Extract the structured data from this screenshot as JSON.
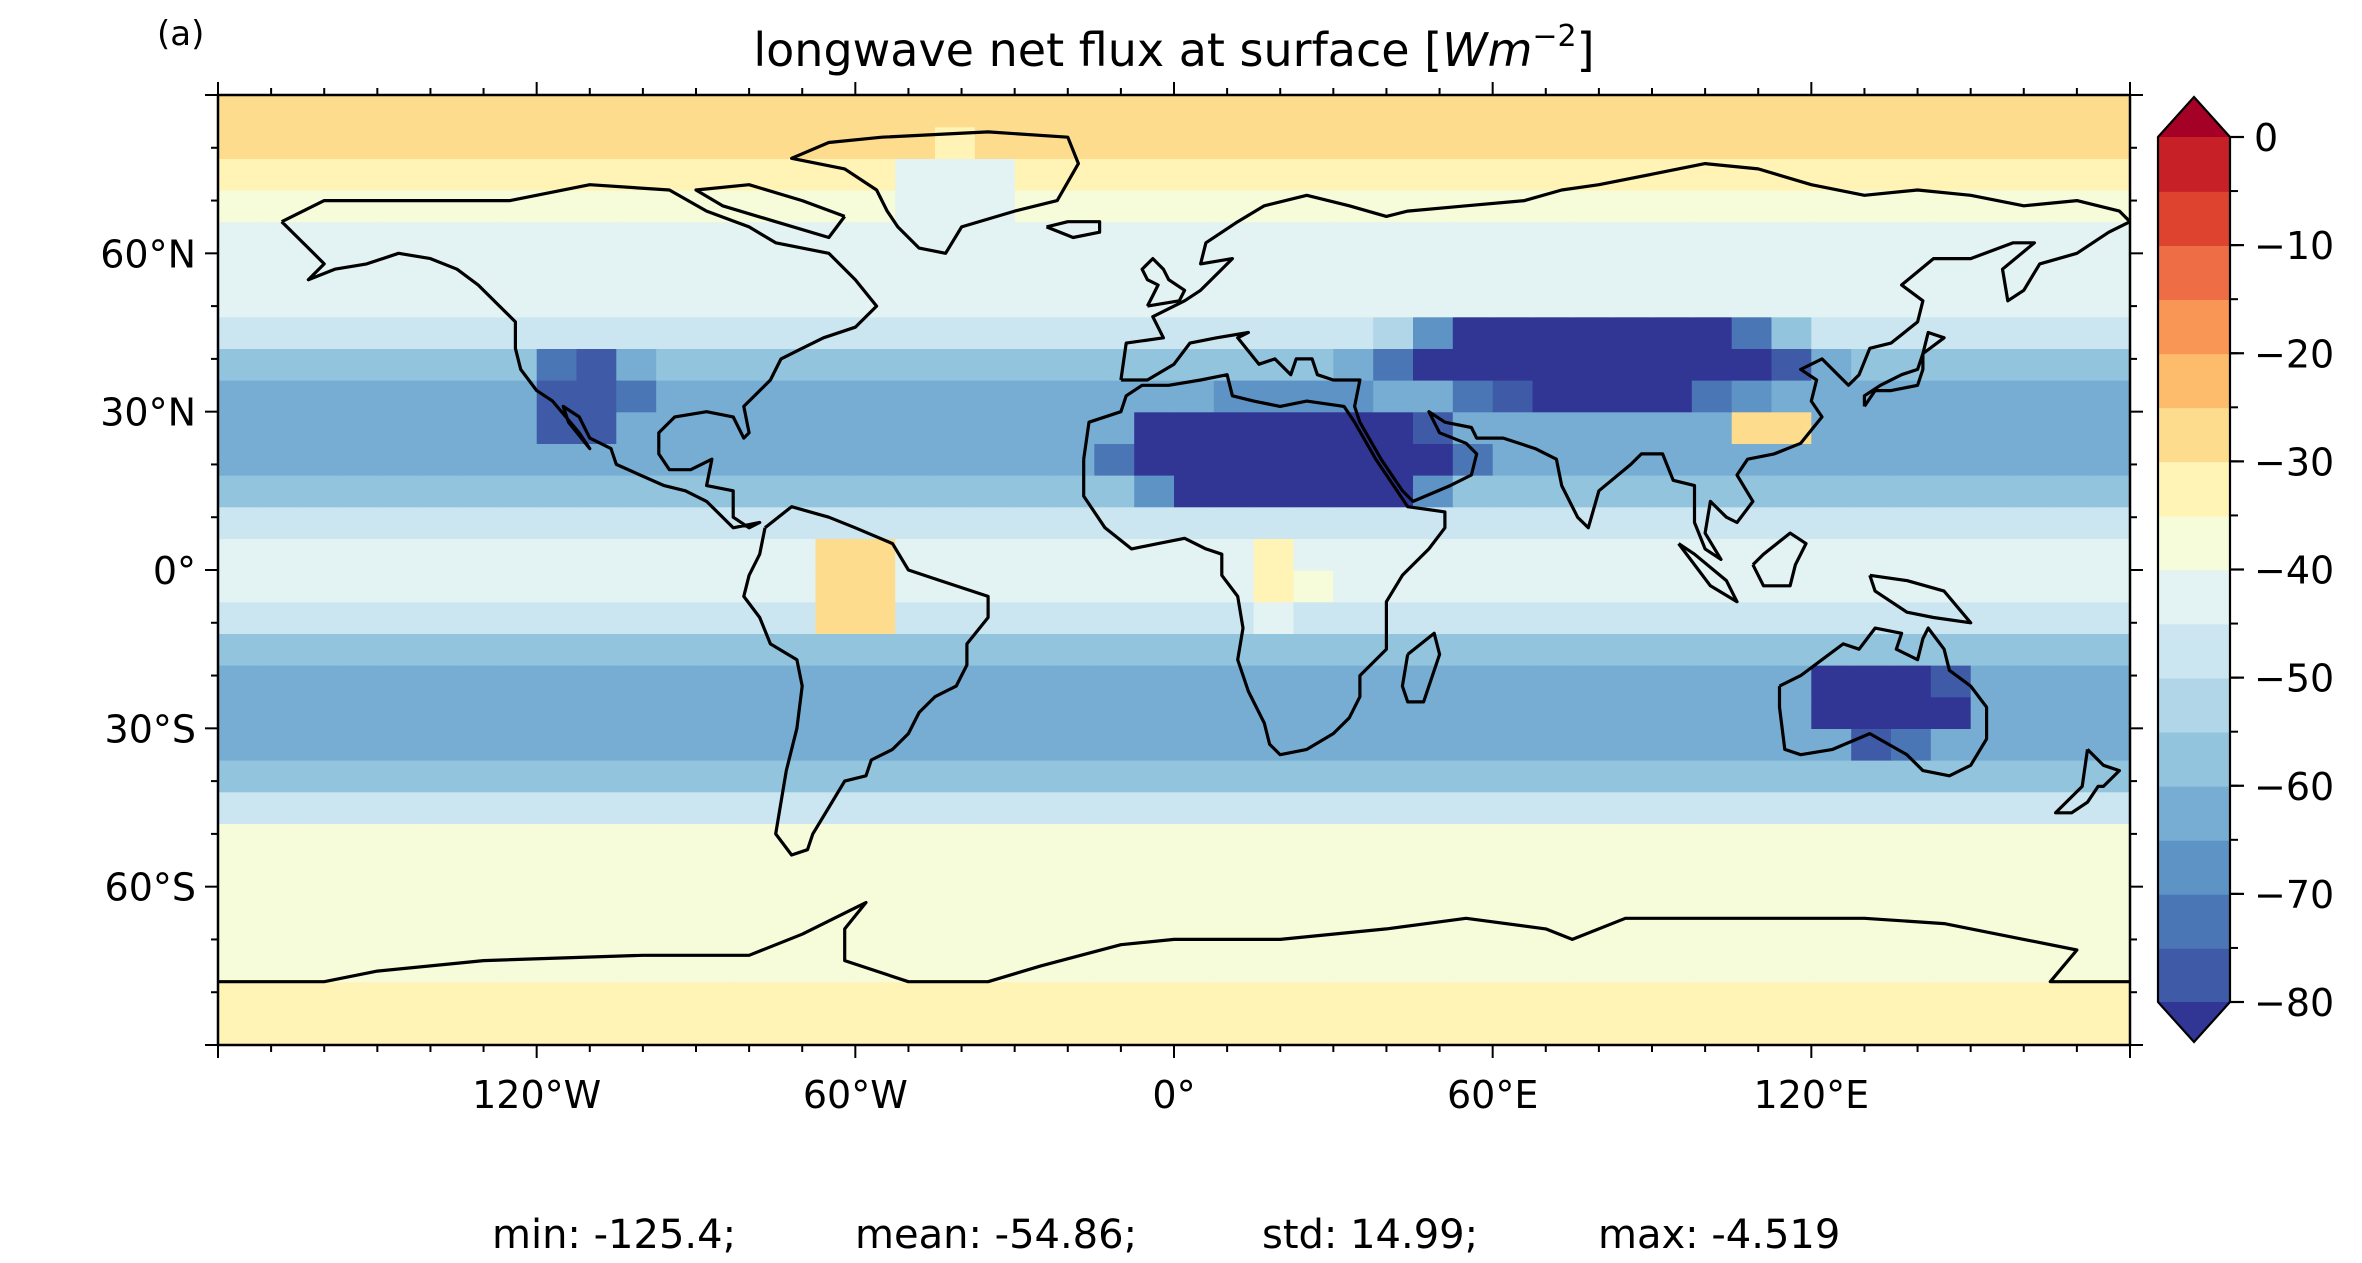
{
  "panel_label": "(a)",
  "title_prefix": "longwave net flux at surface [",
  "title_unit": "W",
  "title_unit_m": "m",
  "title_unit_exp": "−2",
  "title_suffix": "]",
  "stats": {
    "min": "min: -125.4;",
    "mean": "mean: -54.86;",
    "std": "std: 14.99;",
    "max": "max: -4.519"
  },
  "colors": {
    "coastline": "#000000",
    "ocean_base": "#c8dcec"
  },
  "chart_data": {
    "type": "heatmap",
    "title": "longwave net flux at surface [Wm−2]",
    "projection": "PlateCarree",
    "lon_range": [
      -180,
      180
    ],
    "lat_range": [
      -90,
      90
    ],
    "x_ticks": [
      "120°W",
      "60°W",
      "0°",
      "60°E",
      "120°E"
    ],
    "x_tick_values": [
      -120,
      -60,
      0,
      60,
      120
    ],
    "y_ticks": [
      "60°N",
      "30°N",
      "0°",
      "30°S",
      "60°S"
    ],
    "y_tick_values": [
      60,
      30,
      0,
      -30,
      -60
    ],
    "colorbar": {
      "ticks": [
        "0",
        "−10",
        "−20",
        "−30",
        "−40",
        "−50",
        "−60",
        "−70",
        "−80"
      ],
      "tick_values": [
        0,
        -10,
        -20,
        -30,
        -40,
        -50,
        -60,
        -70,
        -80
      ],
      "range": [
        -80,
        0
      ],
      "levels": 16,
      "extend": "both",
      "colormap": "RdYlBu_r",
      "colors_low_to_high": [
        "#313695",
        "#3f5aa6",
        "#4a76b5",
        "#5d94c5",
        "#78add3",
        "#93c4de",
        "#b0d6e8",
        "#cbe6f0",
        "#e3f2f2",
        "#f6fbd9",
        "#fff3b5",
        "#fedc8e",
        "#fdbb6c",
        "#f99656",
        "#ef6d45",
        "#de4330",
        "#c82027",
        "#a50026"
      ]
    },
    "regional_values_approx": [
      {
        "region": "Sahara and Arabian deserts",
        "value": -90
      },
      {
        "region": "Central Asia",
        "value": -85
      },
      {
        "region": "Australian interior",
        "value": -85
      },
      {
        "region": "Southwest North America",
        "value": -80
      },
      {
        "region": "Amazon basin",
        "value": -28
      },
      {
        "region": "Congo basin",
        "value": -35
      },
      {
        "region": "Southeast China",
        "value": -28
      },
      {
        "region": "Greenland",
        "value": -45
      },
      {
        "region": "Arctic Ocean",
        "value": -30
      },
      {
        "region": "Antarctic interior",
        "value": -35
      },
      {
        "region": "Subtropical oceans",
        "value": -62
      },
      {
        "region": "Equatorial oceans",
        "value": -45
      },
      {
        "region": "Southern Ocean",
        "value": -38
      }
    ],
    "stats": {
      "min": -125.4,
      "mean": -54.86,
      "std": 14.99,
      "max": -4.519
    }
  }
}
